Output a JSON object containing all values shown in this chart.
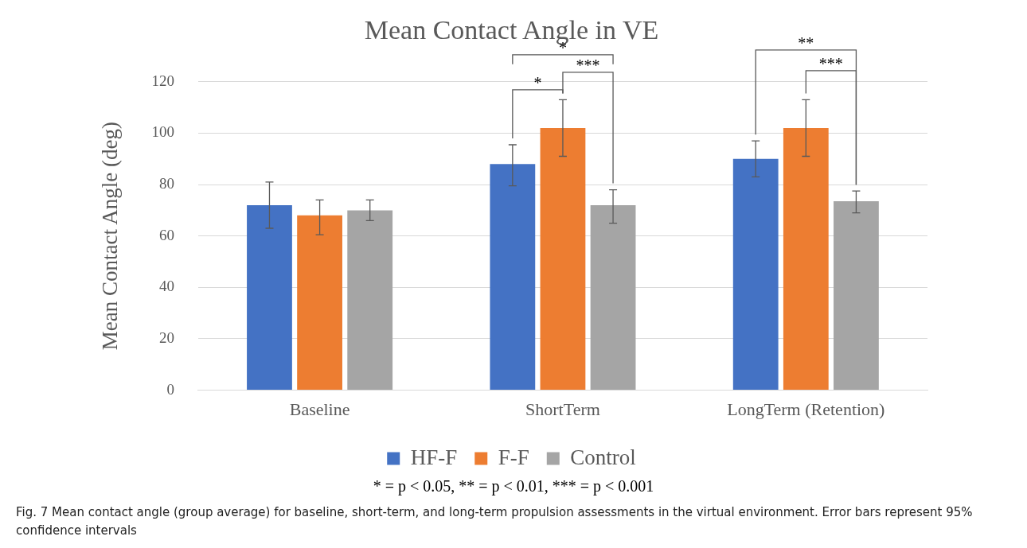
{
  "chart_data": {
    "type": "bar",
    "title": "Mean Contact Angle in VE",
    "ylabel": "Mean Contact Angle (deg)",
    "categories": [
      "Baseline",
      "ShortTerm",
      "LongTerm (Retention)"
    ],
    "series": [
      {
        "name": "HF-F",
        "color": "#4472c4",
        "values": [
          72,
          88,
          90
        ],
        "errors": [
          [
            63,
            81
          ],
          [
            79.5,
            95.5
          ],
          [
            83,
            97
          ]
        ]
      },
      {
        "name": "F-F",
        "color": "#ed7d31",
        "values": [
          68,
          102,
          102
        ],
        "errors": [
          [
            60.5,
            74
          ],
          [
            91,
            113
          ],
          [
            91,
            113
          ]
        ]
      },
      {
        "name": "Control",
        "color": "#a5a5a5",
        "values": [
          70,
          72,
          73.5
        ],
        "errors": [
          [
            66,
            74
          ],
          [
            65,
            78
          ],
          [
            69,
            77.5
          ]
        ]
      }
    ],
    "ylim": [
      0,
      120
    ],
    "yticks": [
      0,
      20,
      40,
      60,
      80,
      100,
      120
    ],
    "grid": "y",
    "legend": "bottom",
    "annotations": [
      "*",
      "***",
      "*",
      "**",
      "***",
      "* = p < 0.05, ** = p < 0.01, *** = p < 0.001",
      "Fig. 7  Mean contact angle (group average) for baseline, short-term, and long-term propulsion assessments in the virtual environment. Error bars represent 95% confidence intervals"
    ]
  }
}
